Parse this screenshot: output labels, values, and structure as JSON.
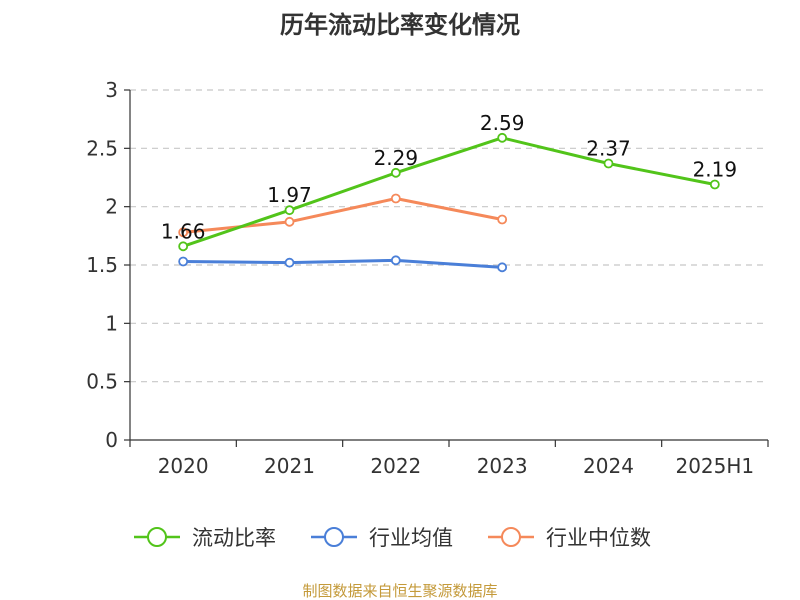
{
  "chart_data": {
    "type": "line",
    "title": "历年流动比率变化情况",
    "categories": [
      "2020",
      "2021",
      "2022",
      "2023",
      "2024",
      "2025H1"
    ],
    "y_ticks": [
      "0",
      "0.5",
      "1",
      "1.5",
      "2",
      "2.5",
      "3"
    ],
    "ylim": [
      0,
      3
    ],
    "grid": true,
    "legend_position": "bottom",
    "series": [
      {
        "name": "流动比率",
        "color": "#52c41a",
        "values": [
          1.66,
          1.97,
          2.29,
          2.59,
          2.37,
          2.19
        ],
        "labels": [
          "1.66",
          "1.97",
          "2.29",
          "2.59",
          "2.37",
          "2.19"
        ]
      },
      {
        "name": "行业均值",
        "color": "#4a7fd8",
        "values": [
          1.53,
          1.52,
          1.54,
          1.48,
          null,
          null
        ]
      },
      {
        "name": "行业中位数",
        "color": "#f5895a",
        "values": [
          1.78,
          1.87,
          2.07,
          1.89,
          null,
          null
        ]
      }
    ],
    "source": "制图数据来自恒生聚源数据库"
  }
}
